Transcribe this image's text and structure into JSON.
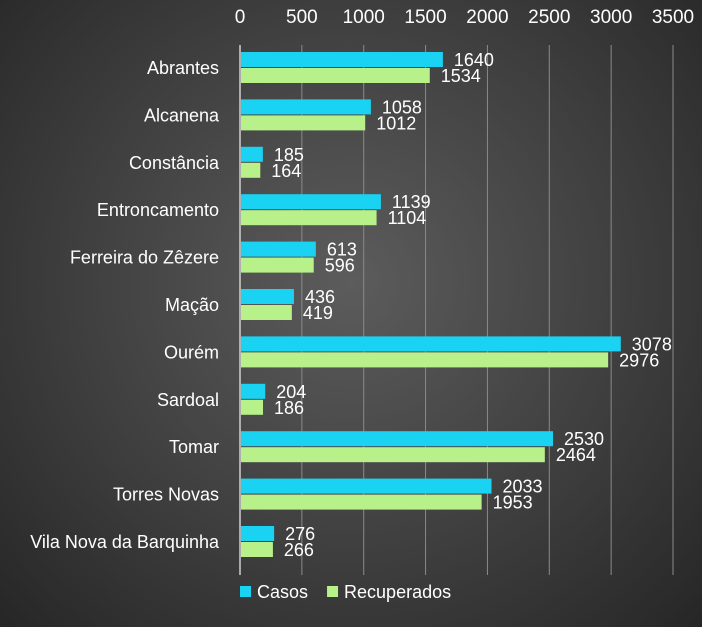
{
  "chart_data": {
    "type": "bar",
    "orientation": "horizontal",
    "categories": [
      "Abrantes",
      "Alcanena",
      "Constância",
      "Entroncamento",
      "Ferreira do Zêzere",
      "Mação",
      "Ourém",
      "Sardoal",
      "Tomar",
      "Torres Novas",
      "Vila Nova da Barquinha"
    ],
    "series": [
      {
        "name": "Casos",
        "color": "#1ad3f2",
        "values": [
          1640,
          1058,
          185,
          1139,
          613,
          436,
          3078,
          204,
          2530,
          2033,
          276
        ]
      },
      {
        "name": "Recuperados",
        "color": "#b8f08a",
        "values": [
          1534,
          1012,
          164,
          1104,
          596,
          419,
          2976,
          186,
          2464,
          1953,
          266
        ]
      }
    ],
    "xlim": [
      0,
      3500
    ],
    "xticks": [
      0,
      500,
      1000,
      1500,
      2000,
      2500,
      3000,
      3500
    ],
    "xaxis_position": "top",
    "grid": true,
    "legend_position": "bottom-left",
    "title": "",
    "xlabel": "",
    "ylabel": ""
  }
}
